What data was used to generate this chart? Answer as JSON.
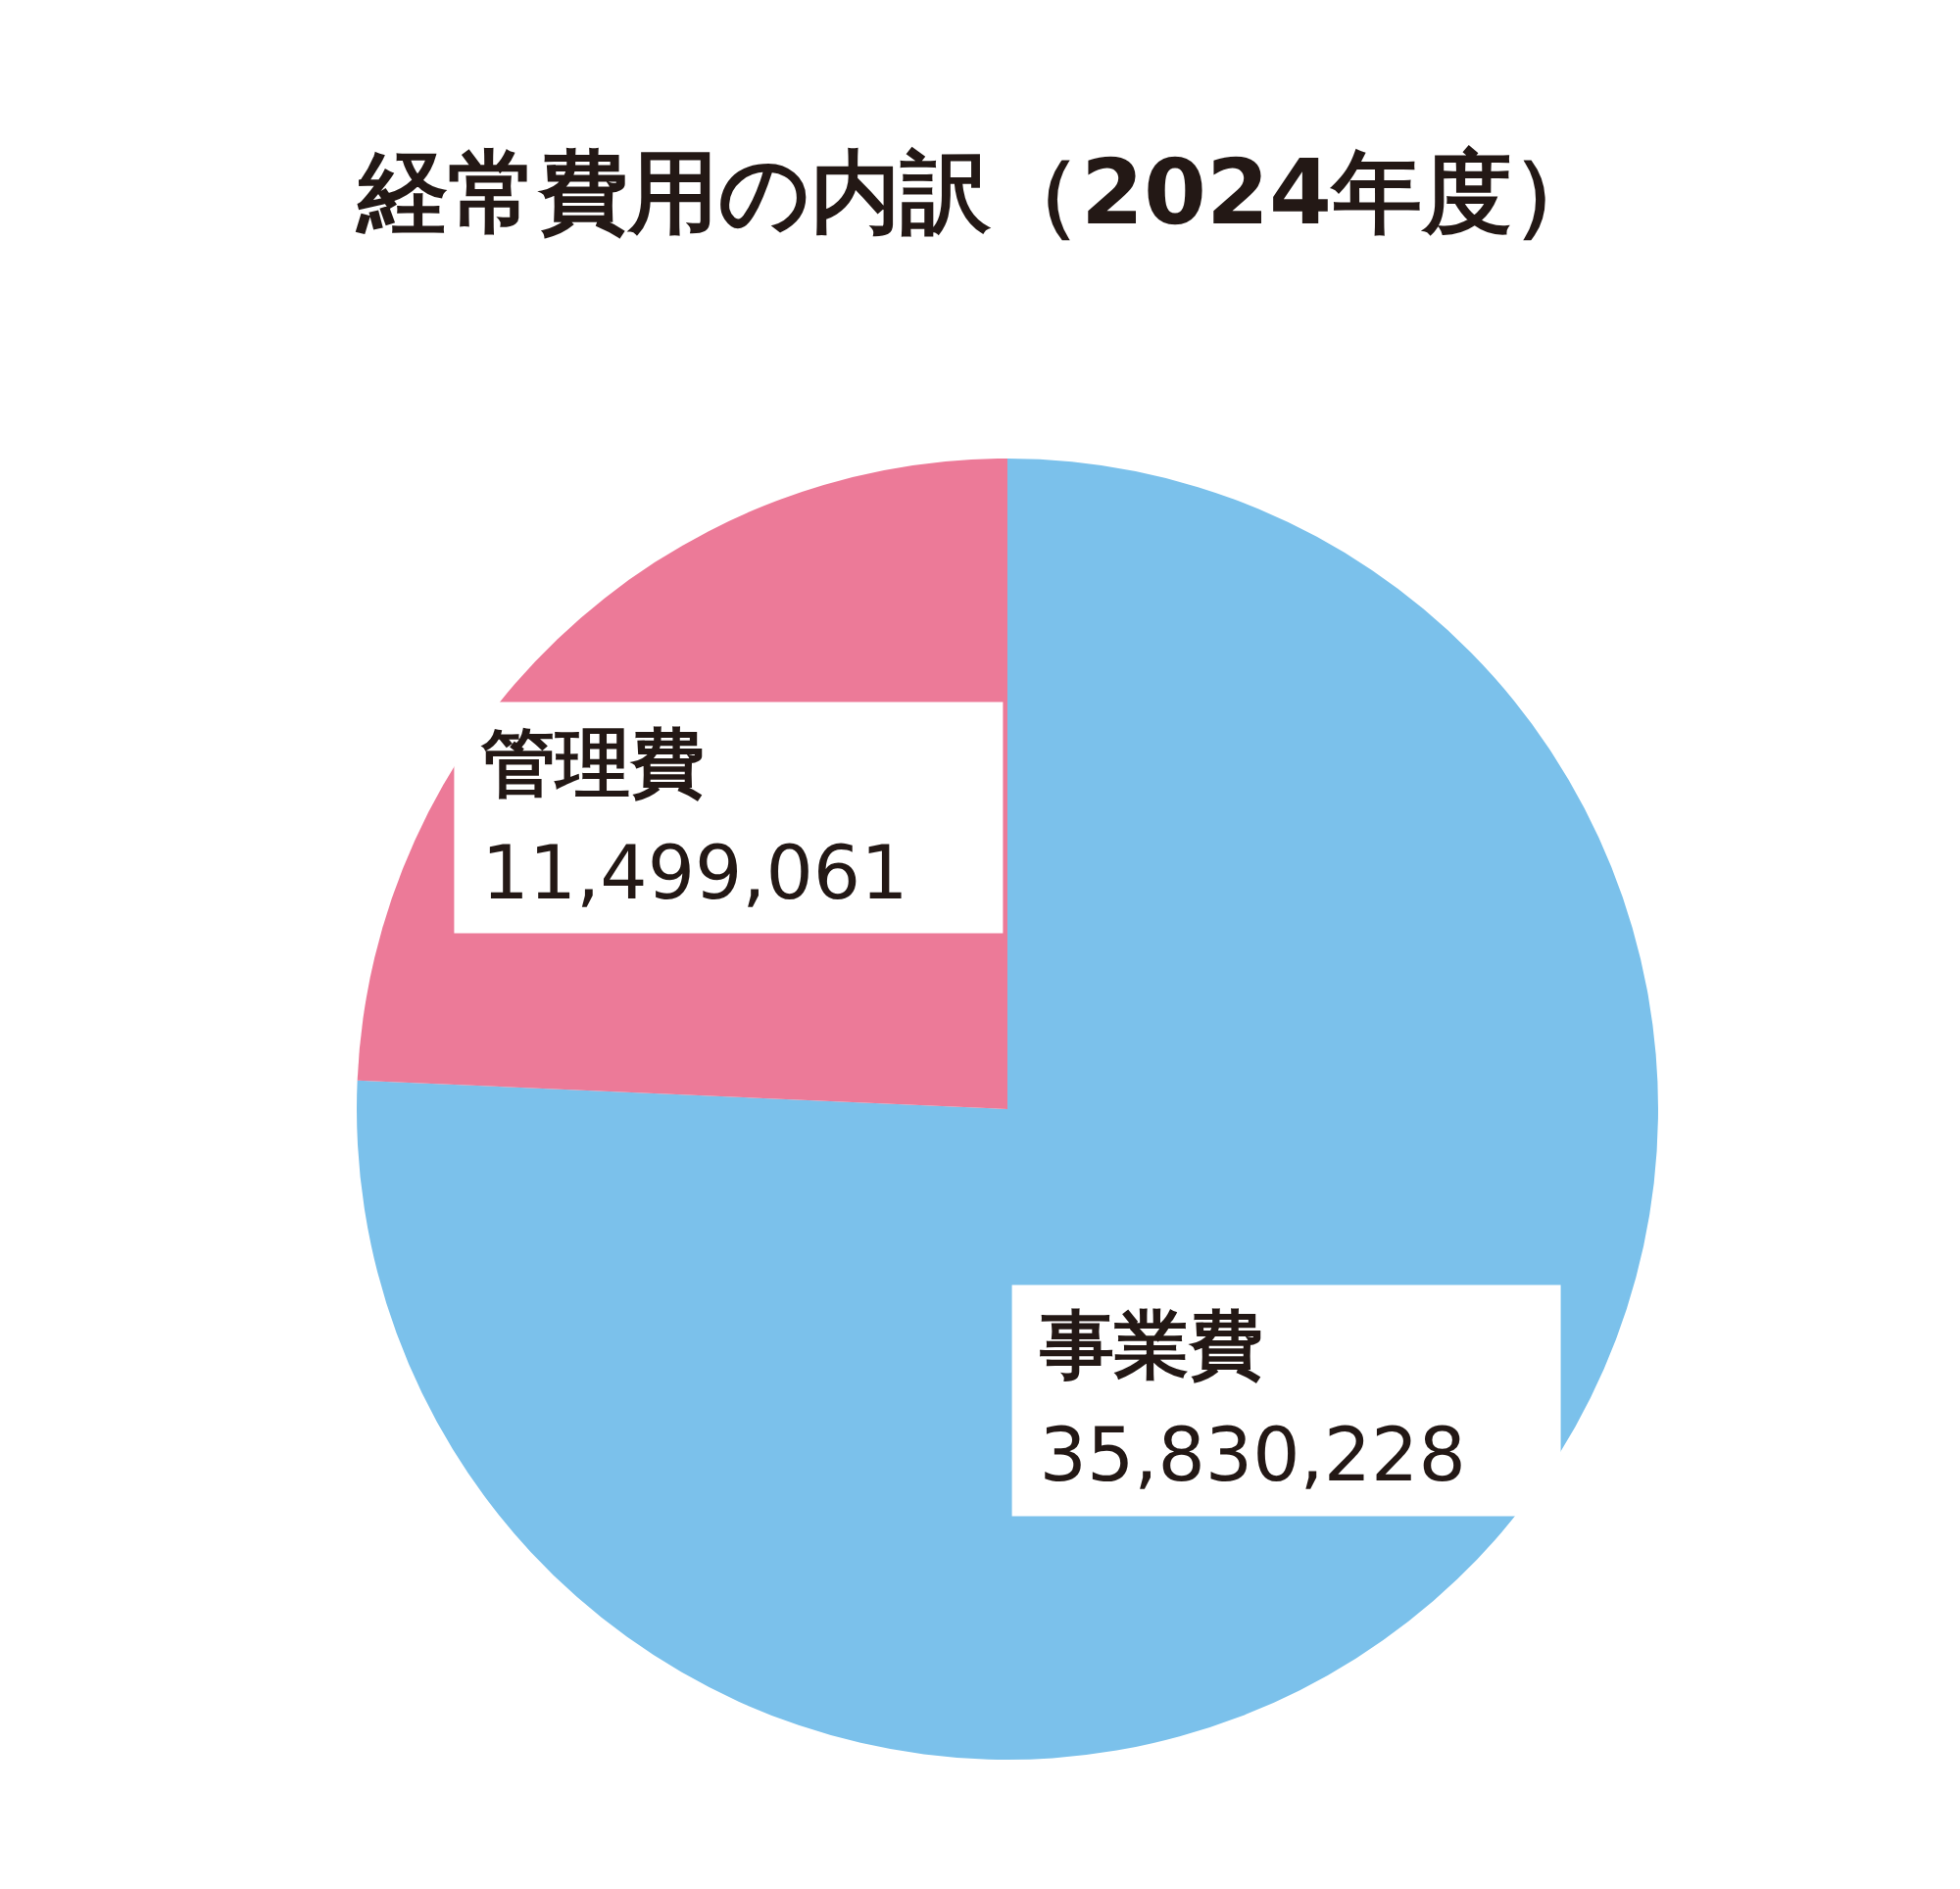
{
  "chart_data": {
    "type": "pie",
    "title": "経常費用の内訳（2024年度）",
    "categories": [
      "事業費",
      "管理費"
    ],
    "values": [
      35830228,
      11499061
    ],
    "colors": [
      "#7bc1eb",
      "#ec7a98"
    ],
    "value_labels": [
      "35,830,228",
      "11,499,061"
    ]
  }
}
